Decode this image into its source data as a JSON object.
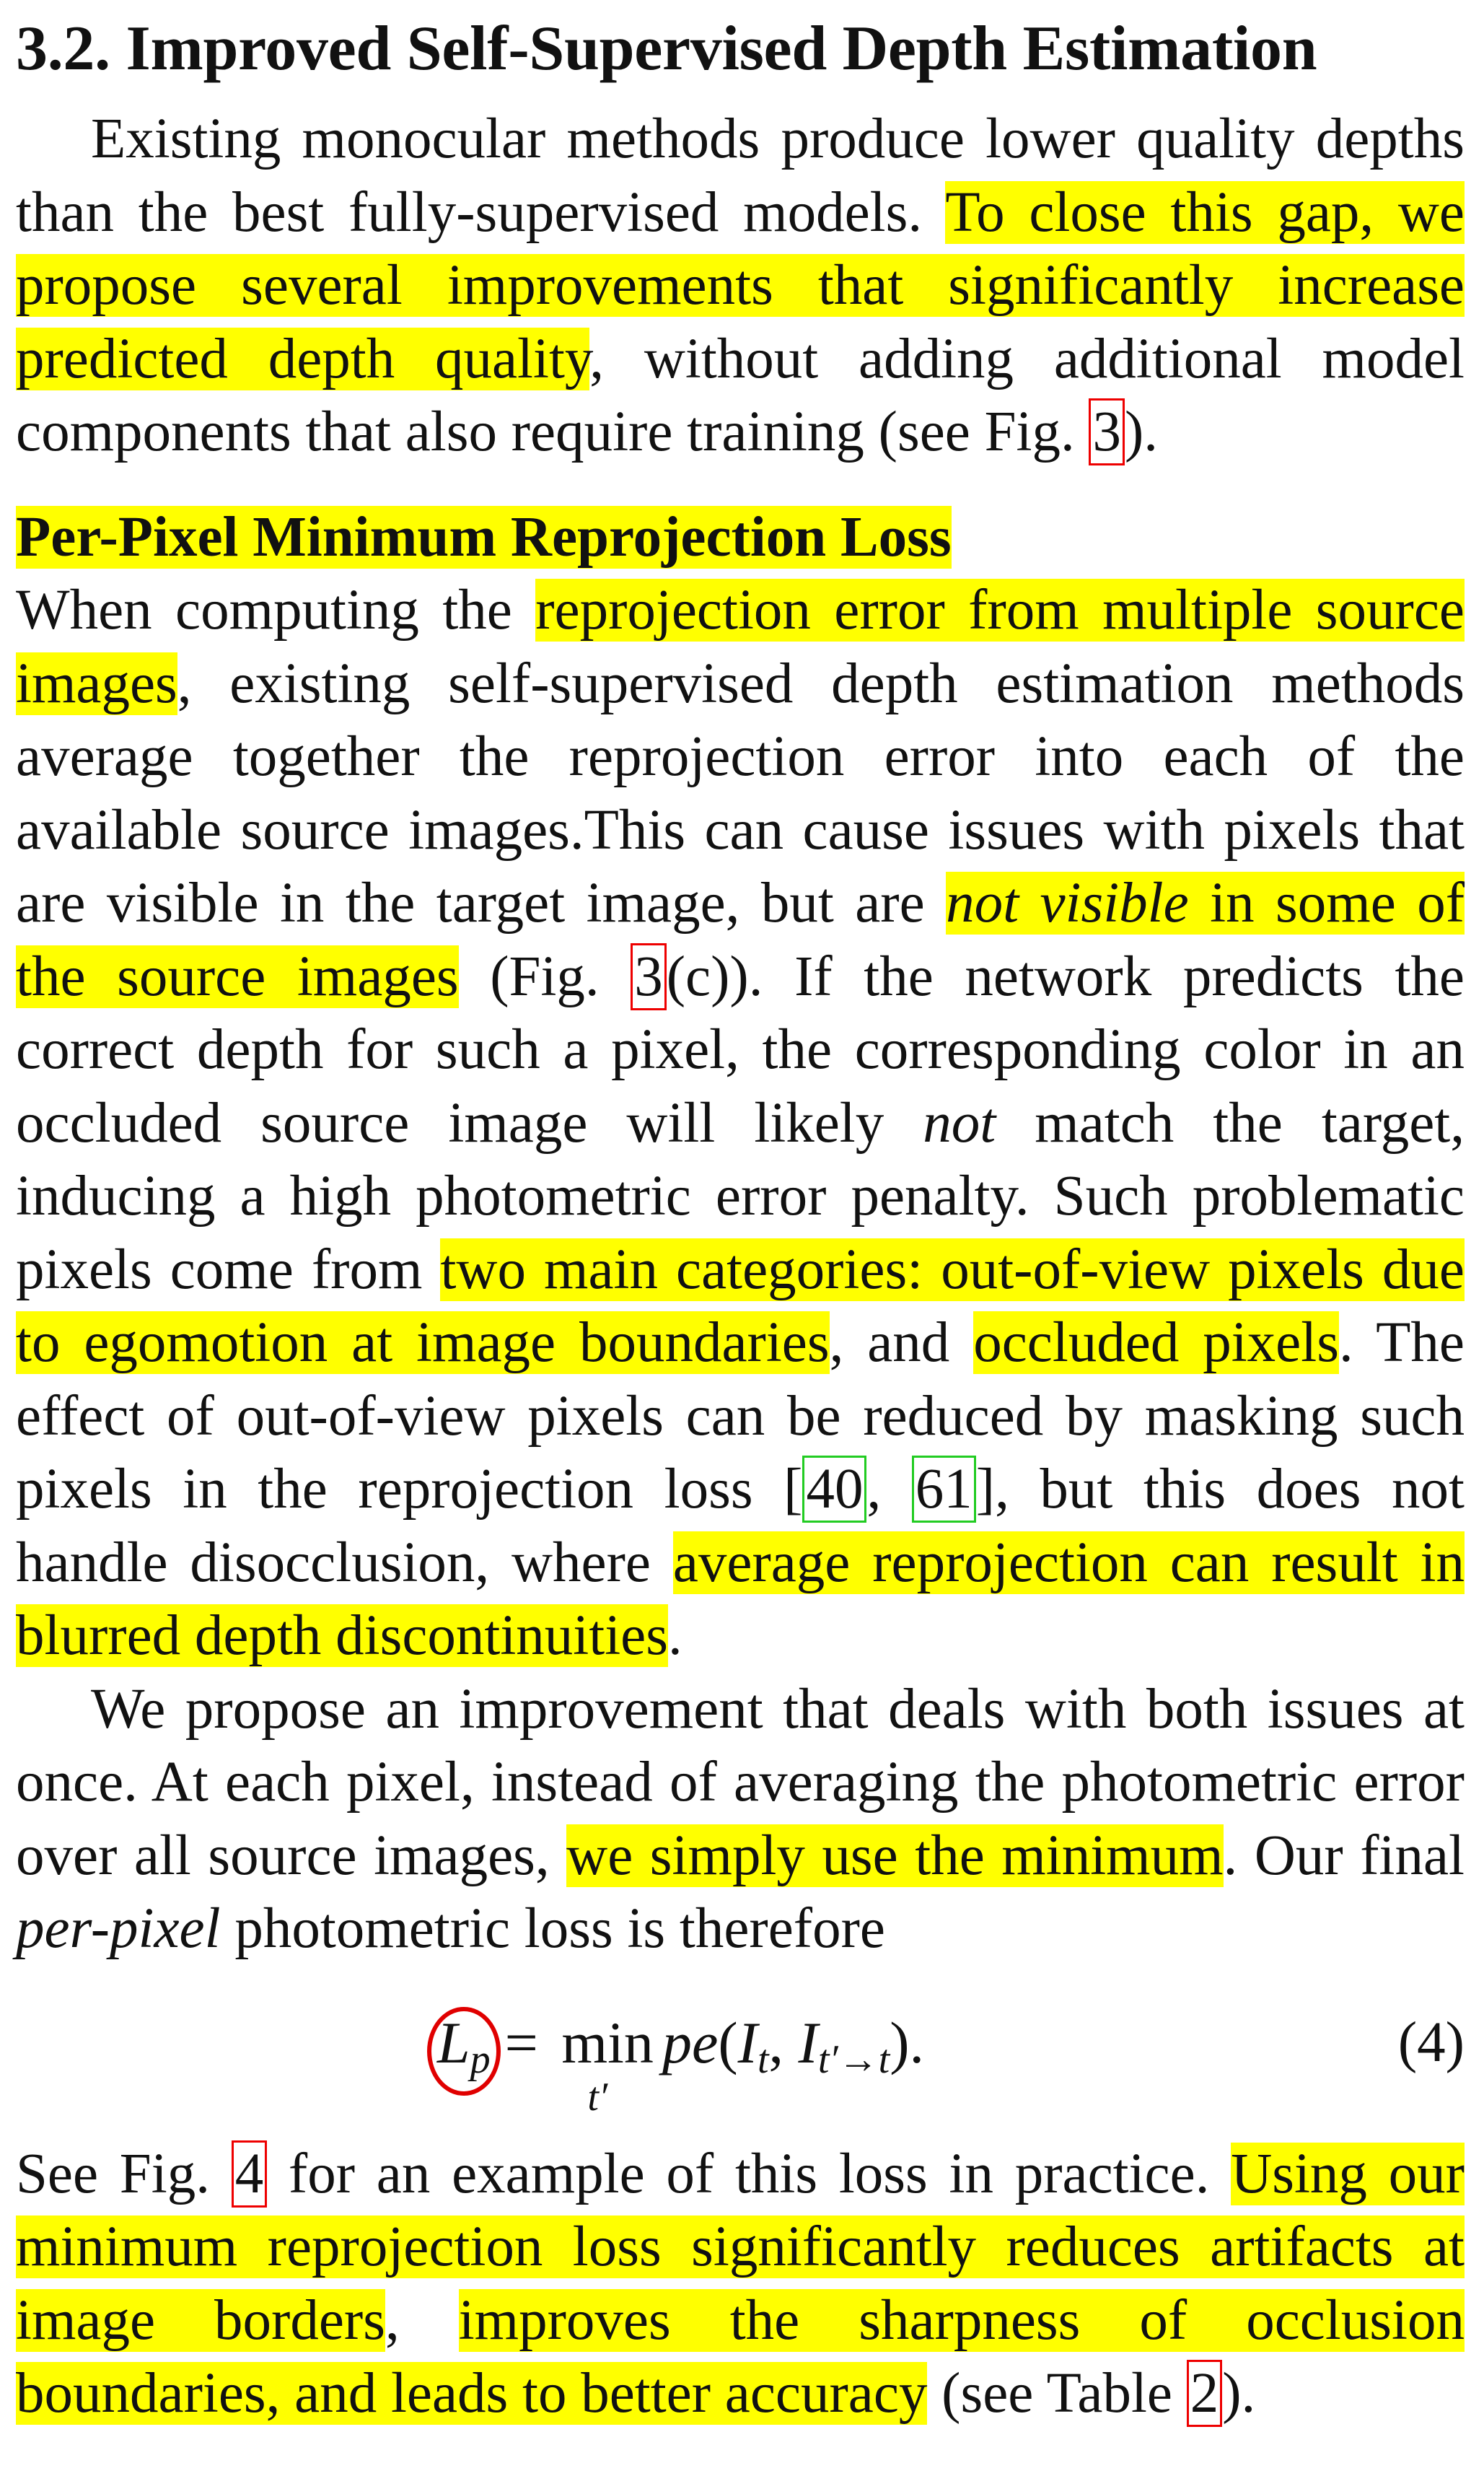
{
  "section_title": "3.2. Improved Self-Supervised Depth Estimation",
  "intro": {
    "s1": "Existing monocular methods produce lower quality depths than the best fully-supervised models. ",
    "h1": "To close this gap, we propose several improvements that significantly increase predicted depth quality",
    "s2": ", without adding additional model components that also require training (see Fig. ",
    "ref_fig3": "3",
    "s3": ")."
  },
  "subheading": "Per-Pixel Minimum Reprojection Loss",
  "para1": {
    "s1": "When computing the ",
    "h1": "reprojection error from multiple source images",
    "s2": ", existing self-supervised depth estimation methods average together the reprojection error into each of the available source images.This can cause issues with pixels that are visible in the target image, but are ",
    "h2_em": "not visible",
    "h2_rest": " in some of the source images",
    "s3": " (Fig. ",
    "ref_fig3": "3",
    "s4": "(c)). If the network predicts the correct depth for such a pixel, the corresponding color in an occluded source image will likely ",
    "em_not": "not",
    "s5": " match the target, inducing a high photometric error penalty. Such problematic pixels come from ",
    "h3": "two main categories: out-of-view pixels due to egomotion at image boundaries",
    "s6": ", and ",
    "h4": "occluded pixels",
    "s7": ". The effect of out-of-view pixels can be reduced by masking such pixels in the reprojection loss [",
    "cite40": "40",
    "s8": ", ",
    "cite61": "61",
    "s9": "], but this does not handle disocclusion, where ",
    "h5": "average reprojection can result in blurred depth discontinuities",
    "s10": "."
  },
  "para2": {
    "s1": "We propose an improvement that deals with both issues at once. At each pixel, instead of averaging the photometric error over all source images, ",
    "h1": "we simply use the minimum",
    "s2": ". Our final ",
    "em": "per-pixel",
    "s3": " photometric loss is therefore"
  },
  "equation": {
    "lhs": "L",
    "lhs_sub": "p",
    "eq": "=",
    "min": "min",
    "min_sub": "t′",
    "fn": "pe",
    "arg1": "I",
    "arg1_sub": "t",
    "arg2": "I",
    "arg2_sub": "t′→t",
    "number": "(4)"
  },
  "para3": {
    "s1": "See Fig. ",
    "ref_fig4": "4",
    "s2": " for an example of this loss in practice. ",
    "h1": "Using our minimum reprojection loss significantly reduces artifacts at image borders",
    "s3": ", ",
    "h2": "improves the sharpness of occlusion boundaries, and leads to better accuracy",
    "s4": " (see Table ",
    "ref_table2": "2",
    "s5": ")."
  },
  "colors": {
    "highlight": "#ffff00",
    "ref_box": "#ee0000",
    "cite_box": "#22cc22",
    "circle": "#e00000"
  }
}
